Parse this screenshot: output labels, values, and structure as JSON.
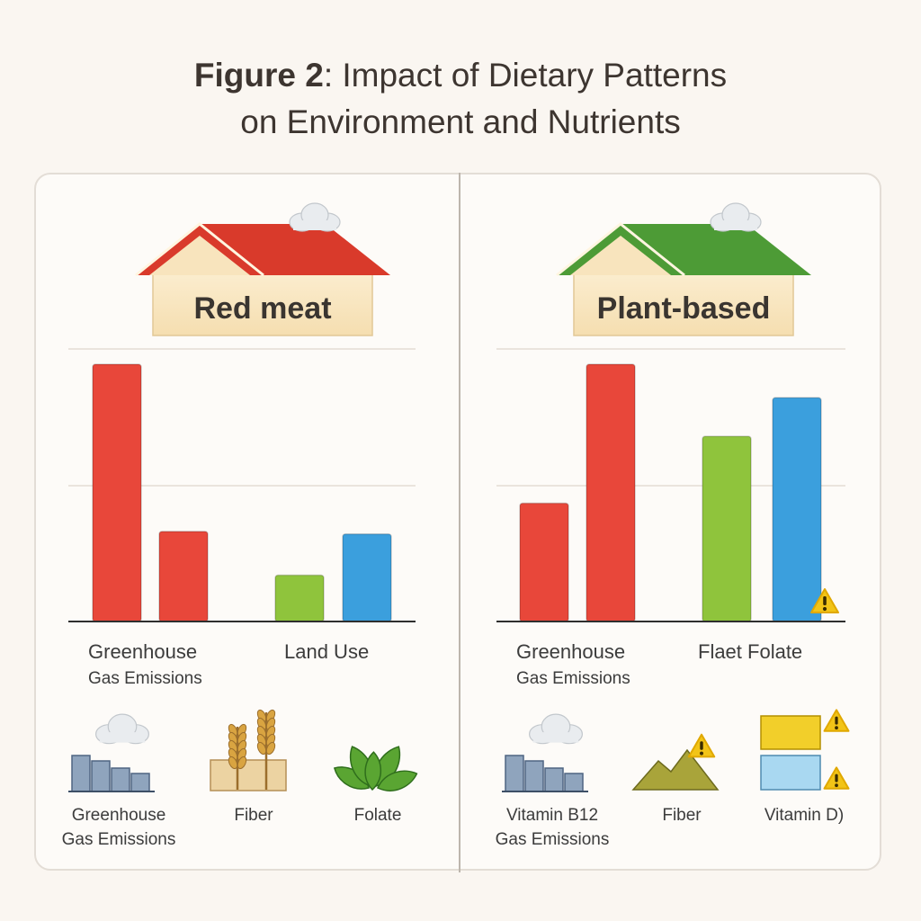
{
  "title": {
    "line1_bold": "Figure 2",
    "line1_rest": ": Impact of Dietary Patterns",
    "line2": "on Environment and Nutrients"
  },
  "colors": {
    "red": "#e8473a",
    "green": "#8fc43c",
    "blue": "#3b9fdd",
    "red_roof": "#d93a2b",
    "green_roof": "#4d9b36",
    "warning": "#f2c417"
  },
  "chart_data": [
    {
      "type": "bar",
      "panel": "Red meat",
      "ylim": [
        0,
        100
      ],
      "grid": true,
      "bars": [
        {
          "category": "Greenhouse Gas Emissions",
          "value": 100,
          "color": "red"
        },
        {
          "category": "Greenhouse Gas Emissions",
          "value": 35,
          "color": "red"
        },
        {
          "category": "Land Use",
          "value": 18,
          "color": "green"
        },
        {
          "category": "Land Use",
          "value": 34,
          "color": "blue"
        }
      ],
      "category_labels": [
        {
          "lines": [
            "Greenhouse",
            "Gas Emissions"
          ]
        },
        {
          "lines": [
            "Land  Use"
          ]
        }
      ]
    },
    {
      "type": "bar",
      "panel": "Plant-based",
      "ylim": [
        0,
        100
      ],
      "grid": true,
      "bars": [
        {
          "category": "Greenhouse Gas Emissions",
          "value": 46,
          "color": "red"
        },
        {
          "category": "Greenhouse Gas Emissions",
          "value": 100,
          "color": "red"
        },
        {
          "category": "Flaet Folate",
          "value": 72,
          "color": "green"
        },
        {
          "category": "Flaet Folate",
          "value": 87,
          "color": "blue",
          "warning": true
        }
      ],
      "category_labels": [
        {
          "lines": [
            "Greenhouse",
            "Gas Emissions"
          ]
        },
        {
          "lines": [
            "Flaet  Folate"
          ]
        }
      ]
    }
  ],
  "panels": [
    {
      "house_label": "Red meat",
      "roof": "red_roof",
      "icons": [
        {
          "icon": "emissions-bars-cloud-icon",
          "lines": [
            "Greenhouse",
            "Gas Emissions"
          ]
        },
        {
          "icon": "wheat-icon",
          "lines": [
            "Fiber"
          ]
        },
        {
          "icon": "leaves-icon",
          "lines": [
            "Folate"
          ]
        }
      ]
    },
    {
      "house_label": "Plant-based",
      "roof": "green_roof",
      "icons": [
        {
          "icon": "emissions-bars-cloud-icon",
          "lines": [
            "Vitamin B12",
            "Gas Emissions"
          ]
        },
        {
          "icon": "hills-warning-icon",
          "lines": [
            "Fiber"
          ]
        },
        {
          "icon": "sun-boxes-warning-icon",
          "lines": [
            "Vitamin D)"
          ]
        }
      ]
    }
  ]
}
